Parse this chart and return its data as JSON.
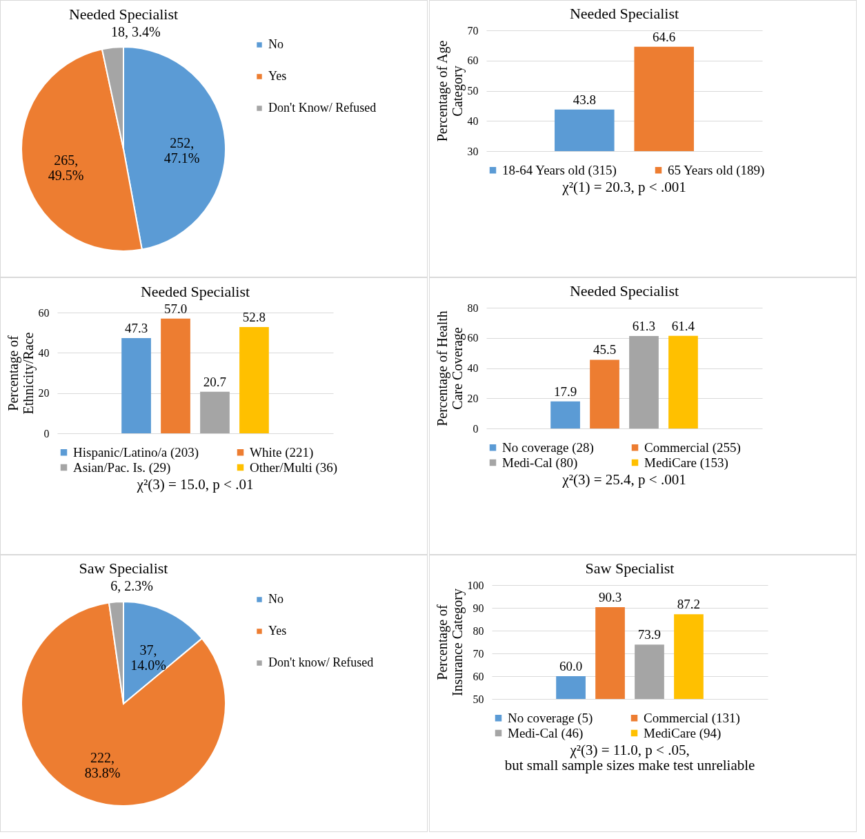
{
  "chart_data": [
    {
      "type": "pie",
      "title": "Needed Specialist",
      "categories": [
        "No",
        "Yes",
        "Don't Know/ Refused"
      ],
      "values": [
        252,
        265,
        18
      ],
      "colors": [
        "#5b9bd5",
        "#ed7d31",
        "#a5a5a5"
      ],
      "value_labels": [
        "252, 47.1%",
        "265, 49.5%",
        "18, 3.4%"
      ],
      "legend": "right"
    },
    {
      "type": "bar",
      "title": "Needed Specialist",
      "ylabel": "Percentage of Age Category",
      "categories": [
        null
      ],
      "series": [
        {
          "name": "18-64 Years old (315)",
          "color": "#5b9bd5",
          "values": [
            43.8
          ],
          "value_labels": [
            "43.8"
          ]
        },
        {
          "name": "65 Years old (189)",
          "color": "#ed7d31",
          "values": [
            64.6
          ],
          "value_labels": [
            "64.6"
          ]
        }
      ],
      "ylim": [
        30,
        70
      ],
      "yticks": [
        30,
        40,
        50,
        60,
        70
      ],
      "grid": "y",
      "legend": "bottom",
      "tick_labels": "y",
      "annotations": [
        "χ²(1) = 20.3, p < .001"
      ]
    },
    {
      "type": "bar",
      "title": "Needed Specialist",
      "ylabel": "Percentage of Ethnicity/Race",
      "categories": [
        null
      ],
      "series": [
        {
          "name": "Hispanic/Latino/a (203)",
          "color": "#5b9bd5",
          "values": [
            47.3
          ],
          "value_labels": [
            "47.3"
          ]
        },
        {
          "name": "White (221)",
          "color": "#ed7d31",
          "values": [
            57.0
          ],
          "value_labels": [
            "57.0"
          ]
        },
        {
          "name": "Asian/Pac. Is. (29)",
          "color": "#a5a5a5",
          "values": [
            20.7
          ],
          "value_labels": [
            "20.7"
          ]
        },
        {
          "name": "Other/Multi (36)",
          "color": "#ffc000",
          "values": [
            52.8
          ],
          "value_labels": [
            "52.8"
          ]
        }
      ],
      "ylim": [
        0,
        60
      ],
      "yticks": [
        0,
        20,
        40,
        60
      ],
      "grid": "y",
      "legend": "bottom",
      "tick_labels": "y",
      "annotations": [
        "χ²(3) = 15.0, p < .01"
      ]
    },
    {
      "type": "bar",
      "title": "Needed Specialist",
      "ylabel": "Percentage of Health Care Coverage",
      "categories": [
        null
      ],
      "series": [
        {
          "name": "No coverage (28)",
          "color": "#5b9bd5",
          "values": [
            17.9
          ],
          "value_labels": [
            "17.9"
          ]
        },
        {
          "name": "Commercial (255)",
          "color": "#ed7d31",
          "values": [
            45.5
          ],
          "value_labels": [
            "45.5"
          ]
        },
        {
          "name": "Medi-Cal (80)",
          "color": "#a5a5a5",
          "values": [
            61.3
          ],
          "value_labels": [
            "61.3"
          ]
        },
        {
          "name": "MediCare (153)",
          "color": "#ffc000",
          "values": [
            61.4
          ],
          "value_labels": [
            "61.4"
          ]
        }
      ],
      "ylim": [
        0,
        80
      ],
      "yticks": [
        0,
        20,
        40,
        60,
        80
      ],
      "grid": "y",
      "legend": "bottom",
      "tick_labels": "y",
      "annotations": [
        "χ²(3) = 25.4, p < .001"
      ]
    },
    {
      "type": "pie",
      "title": "Saw Specialist",
      "categories": [
        "No",
        "Yes",
        "Don't know/ Refused"
      ],
      "values": [
        37,
        222,
        6
      ],
      "colors": [
        "#5b9bd5",
        "#ed7d31",
        "#a5a5a5"
      ],
      "value_labels": [
        "37, 14.0%",
        "222, 83.8%",
        "6, 2.3%"
      ],
      "legend": "right"
    },
    {
      "type": "bar",
      "title": "Saw Specialist",
      "ylabel": "Percentage of Insurance Category",
      "categories": [
        null
      ],
      "series": [
        {
          "name": "No coverage (5)",
          "color": "#5b9bd5",
          "values": [
            60.0
          ],
          "value_labels": [
            "60.0"
          ]
        },
        {
          "name": "Commercial (131)",
          "color": "#ed7d31",
          "values": [
            90.3
          ],
          "value_labels": [
            "90.3"
          ]
        },
        {
          "name": "Medi-Cal (46)",
          "color": "#a5a5a5",
          "values": [
            73.9
          ],
          "value_labels": [
            "73.9"
          ]
        },
        {
          "name": "MediCare (94)",
          "color": "#ffc000",
          "values": [
            87.2
          ],
          "value_labels": [
            "87.2"
          ]
        }
      ],
      "ylim": [
        50,
        100
      ],
      "yticks": [
        50,
        60,
        70,
        80,
        90,
        100
      ],
      "grid": "y",
      "legend": "bottom",
      "tick_labels": "y",
      "annotations": [
        "χ²(3) = 11.0, p < .05,",
        "but small sample sizes make test unreliable"
      ]
    }
  ]
}
